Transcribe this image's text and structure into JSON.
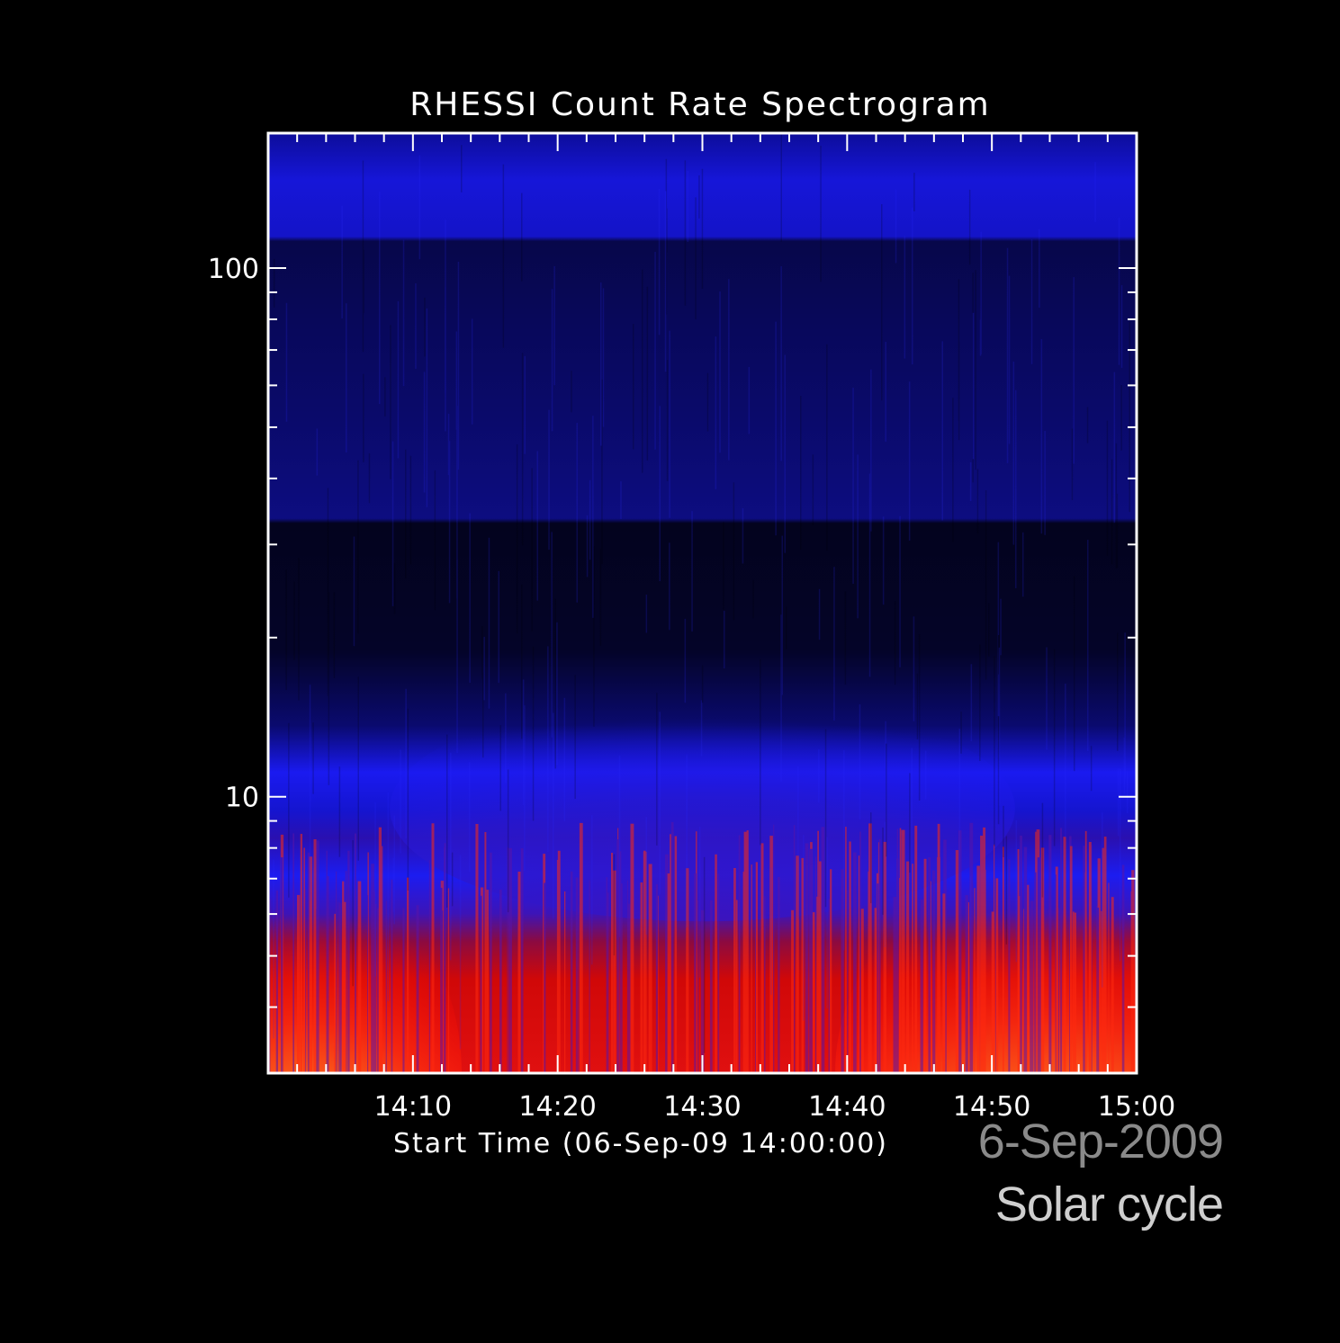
{
  "chart_data": {
    "type": "heatmap",
    "title": "RHESSI Count Rate Spectrogram",
    "xlabel": "Start Time (06-Sep-09 14:00:00)",
    "ylabel": "",
    "x_tick_labels": [
      "14:10",
      "14:20",
      "14:30",
      "14:40",
      "14:50",
      "15:00"
    ],
    "x_tick_minutes": [
      10,
      20,
      30,
      40,
      50,
      60
    ],
    "xlim_minutes": [
      0,
      60
    ],
    "y_scale": "log",
    "y_tick_labels": [
      "10",
      "100"
    ],
    "y_tick_values": [
      10,
      100
    ],
    "ylim": [
      3,
      180
    ],
    "colormap": [
      "#000010",
      "#0b0b7a",
      "#1a1aff",
      "#4b1aa0",
      "#e00000",
      "#ff8020",
      "#ffff40"
    ],
    "bands": [
      {
        "y_range": [
          130,
          180
        ],
        "intensity": "medium-low",
        "color": "#1212c8"
      },
      {
        "y_range": [
          40,
          130
        ],
        "intensity": "low",
        "color": "#0a0a70"
      },
      {
        "y_range": [
          15,
          40
        ],
        "intensity": "very low",
        "color": "#050530"
      },
      {
        "y_range": [
          9,
          15
        ],
        "intensity": "medium",
        "color": "#1a1aff"
      },
      {
        "y_range": [
          3,
          9
        ],
        "intensity": "high",
        "color": "#e00000"
      }
    ]
  },
  "overlay": {
    "date": "6-Sep-2009",
    "caption": "Solar cycle"
  }
}
